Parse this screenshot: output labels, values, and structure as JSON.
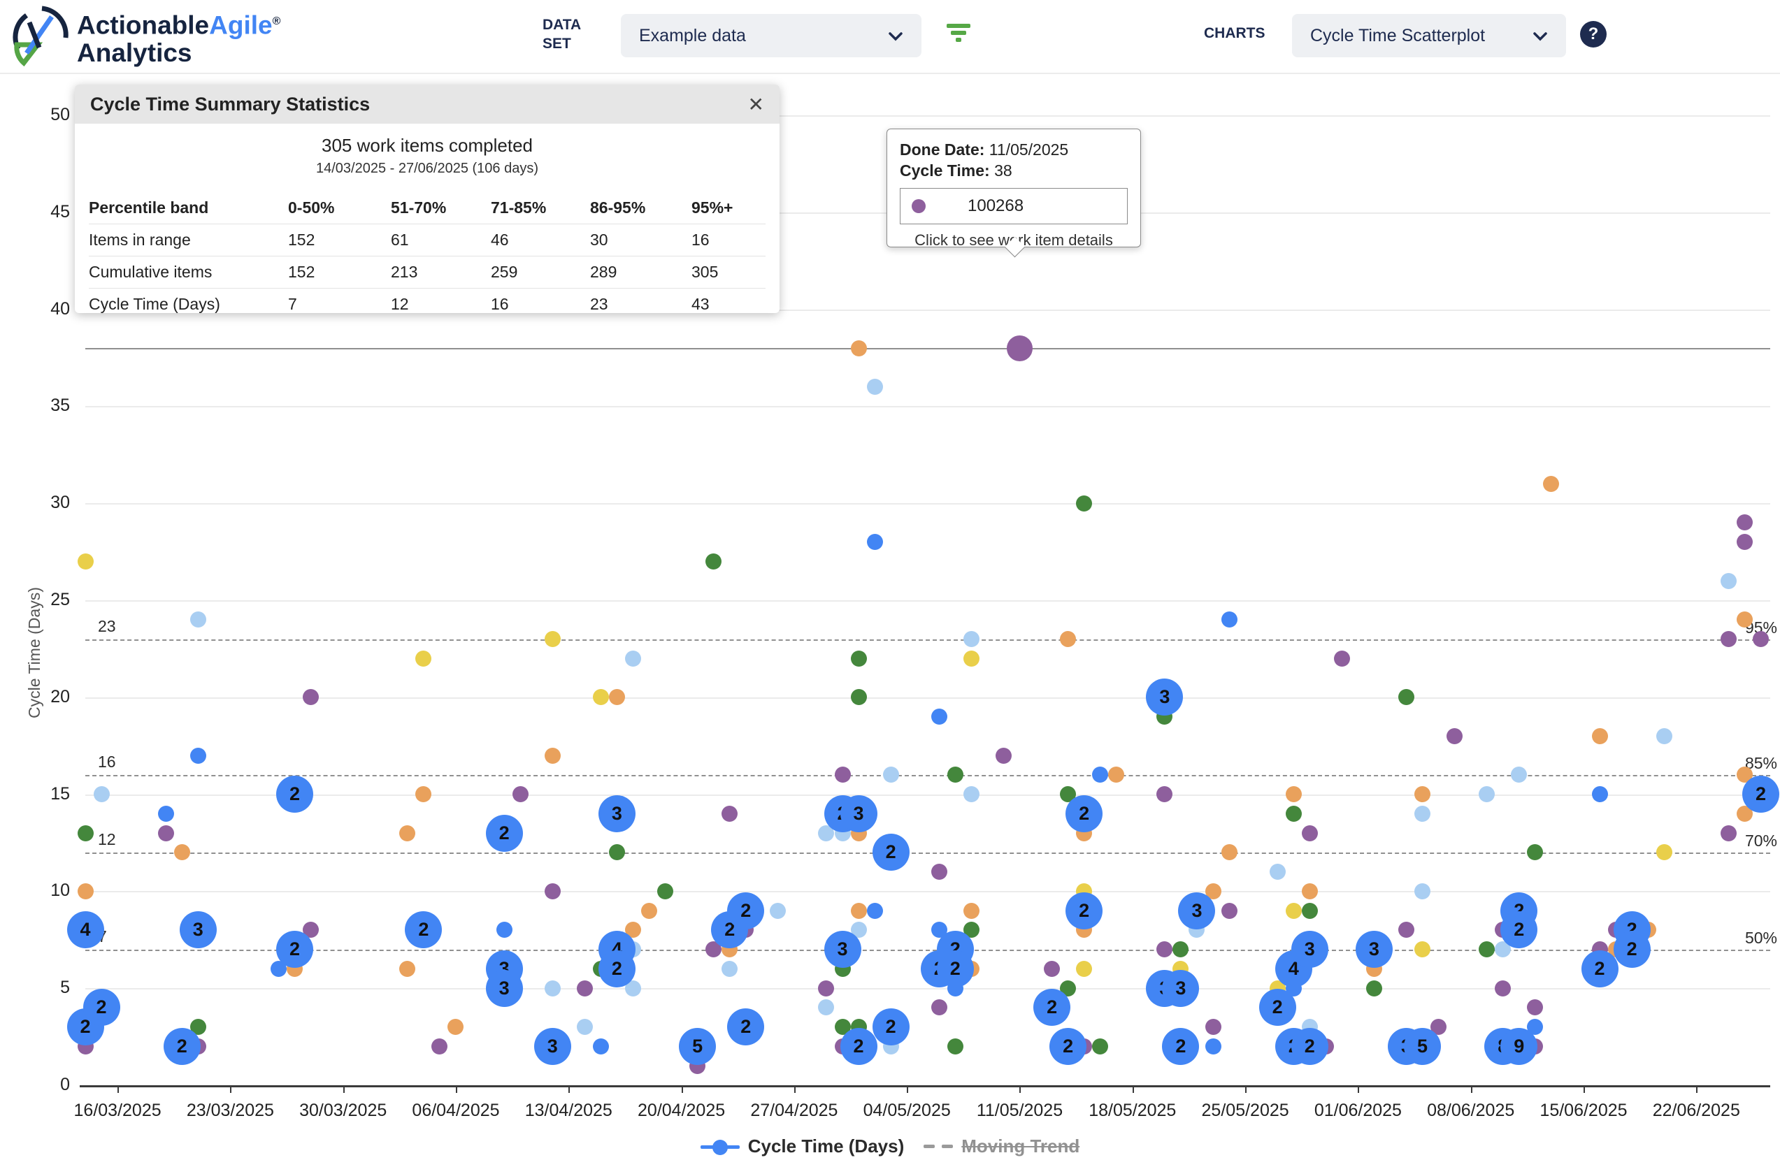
{
  "header": {
    "brand_part1": "Actionable",
    "brand_part2": "Agile",
    "brand_reg": "®",
    "brand_sub": "Analytics",
    "dataset_label_line1": "DATA",
    "dataset_label_line2": "SET",
    "dataset_value": "Example data",
    "charts_label": "CHARTS",
    "chart_type_value": "Cycle Time Scatterplot",
    "help_glyph": "?"
  },
  "stats_panel": {
    "title": "Cycle Time Summary Statistics",
    "close_glyph": "✕",
    "summary_line1": "305 work items completed",
    "summary_line2": "14/03/2025 - 27/06/2025 (106 days)",
    "table": {
      "header": [
        "Percentile band",
        "0-50%",
        "51-70%",
        "71-85%",
        "86-95%",
        "95%+"
      ],
      "rows": [
        {
          "label": "Items in range",
          "values": [
            "152",
            "61",
            "46",
            "30",
            "16"
          ]
        },
        {
          "label": "Cumulative items",
          "values": [
            "152",
            "213",
            "259",
            "289",
            "305"
          ]
        },
        {
          "label": "Cycle Time (Days)",
          "values": [
            "7",
            "12",
            "16",
            "23",
            "43"
          ]
        }
      ]
    }
  },
  "tooltip": {
    "done_date_label": "Done Date:",
    "done_date": "11/05/2025",
    "cycle_time_label": "Cycle Time:",
    "cycle_time": "38",
    "item_id": "100268",
    "hint": "Click to see work item details"
  },
  "legend": {
    "series1": "Cycle Time (Days)",
    "series2": "Moving Trend"
  },
  "chart_data": {
    "type": "scatter",
    "title": "Cycle Time Scatterplot",
    "y_axis": {
      "label": "Cycle Time (Days)",
      "min": 0,
      "max": 50,
      "tick_step": 5
    },
    "x_axis": {
      "start_date": "14/03/2025",
      "end_date": "27/06/2025",
      "tick_labels": [
        "16/03/2025",
        "23/03/2025",
        "30/03/2025",
        "06/04/2025",
        "13/04/2025",
        "20/04/2025",
        "27/04/2025",
        "04/05/2025",
        "11/05/2025",
        "18/05/2025",
        "25/05/2025",
        "01/06/2025",
        "08/06/2025",
        "15/06/2025",
        "22/06/2025"
      ]
    },
    "percentiles": [
      {
        "cycle_time": 23,
        "label": "95%"
      },
      {
        "cycle_time": 16,
        "label": "85%"
      },
      {
        "cycle_time": 12,
        "label": "70%"
      },
      {
        "cycle_time": 7,
        "label": "50%"
      }
    ],
    "crosshair_cycle_time": 38,
    "colors": {
      "blue": "#4285f4",
      "lightblue": "#a9cef2",
      "orange": "#e9a15c",
      "green": "#44873c",
      "purple": "#8e5f9d",
      "yellow": "#e9cf4a"
    },
    "points_format": "[days_since_14/03/2025, cycle_time_days, color, cluster_count, hovered]",
    "points": [
      [
        0,
        27,
        "yellow"
      ],
      [
        0,
        13,
        "green"
      ],
      [
        0,
        10,
        "orange"
      ],
      [
        0,
        8,
        "blue",
        4
      ],
      [
        0,
        3,
        "blue",
        2
      ],
      [
        0,
        2,
        "purple"
      ],
      [
        1,
        15,
        "lightblue"
      ],
      [
        1,
        4,
        "blue",
        2
      ],
      [
        5,
        14,
        "blue"
      ],
      [
        5,
        13,
        "purple"
      ],
      [
        6,
        12,
        "orange"
      ],
      [
        6,
        2,
        "blue",
        2
      ],
      [
        7,
        24,
        "lightblue"
      ],
      [
        7,
        17,
        "blue"
      ],
      [
        7,
        8,
        "blue",
        3
      ],
      [
        7,
        3,
        "green"
      ],
      [
        7,
        2,
        "purple"
      ],
      [
        12,
        6,
        "blue"
      ],
      [
        13,
        15,
        "blue",
        2
      ],
      [
        13,
        7,
        "blue",
        2
      ],
      [
        13,
        6,
        "orange"
      ],
      [
        14,
        20,
        "purple"
      ],
      [
        14,
        8,
        "purple"
      ],
      [
        20,
        13,
        "orange"
      ],
      [
        20,
        6,
        "orange"
      ],
      [
        21,
        22,
        "yellow"
      ],
      [
        21,
        15,
        "orange"
      ],
      [
        21,
        8,
        "blue",
        2
      ],
      [
        22,
        2,
        "purple"
      ],
      [
        23,
        3,
        "orange"
      ],
      [
        26,
        13,
        "blue",
        2
      ],
      [
        26,
        8,
        "blue"
      ],
      [
        26,
        6,
        "blue",
        3
      ],
      [
        26,
        5,
        "blue",
        3
      ],
      [
        27,
        15,
        "purple"
      ],
      [
        29,
        23,
        "yellow"
      ],
      [
        29,
        17,
        "orange"
      ],
      [
        29,
        10,
        "purple"
      ],
      [
        29,
        5,
        "lightblue"
      ],
      [
        29,
        2,
        "blue",
        3
      ],
      [
        31,
        5,
        "purple"
      ],
      [
        31,
        3,
        "lightblue"
      ],
      [
        32,
        20,
        "yellow"
      ],
      [
        32,
        6,
        "green"
      ],
      [
        32,
        2,
        "blue"
      ],
      [
        33,
        20,
        "orange"
      ],
      [
        33,
        14,
        "blue",
        3
      ],
      [
        33,
        12,
        "green"
      ],
      [
        33,
        7,
        "blue",
        4
      ],
      [
        33,
        6,
        "blue",
        2
      ],
      [
        34,
        22,
        "lightblue"
      ],
      [
        34,
        8,
        "orange"
      ],
      [
        34,
        7,
        "lightblue"
      ],
      [
        34,
        5,
        "lightblue"
      ],
      [
        35,
        9,
        "orange"
      ],
      [
        36,
        10,
        "green"
      ],
      [
        38,
        2,
        "blue",
        5
      ],
      [
        38,
        1,
        "purple"
      ],
      [
        39,
        27,
        "green"
      ],
      [
        39,
        7,
        "purple"
      ],
      [
        40,
        14,
        "purple"
      ],
      [
        40,
        8,
        "blue",
        2
      ],
      [
        40,
        7,
        "orange"
      ],
      [
        40,
        6,
        "lightblue"
      ],
      [
        41,
        9,
        "blue",
        2
      ],
      [
        41,
        8,
        "purple"
      ],
      [
        41,
        3,
        "blue",
        2
      ],
      [
        43,
        9,
        "lightblue"
      ],
      [
        46,
        13,
        "lightblue"
      ],
      [
        46,
        5,
        "purple"
      ],
      [
        46,
        4,
        "lightblue"
      ],
      [
        47,
        16,
        "purple"
      ],
      [
        47,
        14,
        "blue",
        2
      ],
      [
        47,
        13,
        "lightblue"
      ],
      [
        47,
        7,
        "blue",
        3
      ],
      [
        47,
        6,
        "green"
      ],
      [
        47,
        3,
        "green"
      ],
      [
        47,
        2,
        "purple"
      ],
      [
        48,
        38,
        "orange"
      ],
      [
        48,
        22,
        "green"
      ],
      [
        48,
        20,
        "green"
      ],
      [
        48,
        14,
        "blue",
        3
      ],
      [
        48,
        13,
        "orange"
      ],
      [
        48,
        9,
        "orange"
      ],
      [
        48,
        8,
        "lightblue"
      ],
      [
        48,
        3,
        "green"
      ],
      [
        48,
        2,
        "blue",
        2
      ],
      [
        49,
        36,
        "lightblue"
      ],
      [
        49,
        28,
        "blue"
      ],
      [
        49,
        9,
        "blue"
      ],
      [
        50,
        16,
        "lightblue"
      ],
      [
        50,
        12,
        "blue",
        2
      ],
      [
        50,
        3,
        "blue",
        2
      ],
      [
        50,
        2,
        "lightblue"
      ],
      [
        53,
        19,
        "blue"
      ],
      [
        53,
        11,
        "purple"
      ],
      [
        53,
        8,
        "blue"
      ],
      [
        53,
        6,
        "blue",
        2
      ],
      [
        53,
        4,
        "purple"
      ],
      [
        54,
        16,
        "green"
      ],
      [
        54,
        7,
        "blue",
        2
      ],
      [
        54,
        6,
        "blue",
        2
      ],
      [
        54,
        5,
        "blue"
      ],
      [
        54,
        2,
        "green"
      ],
      [
        55,
        23,
        "lightblue"
      ],
      [
        55,
        22,
        "yellow"
      ],
      [
        55,
        15,
        "lightblue"
      ],
      [
        55,
        9,
        "orange"
      ],
      [
        55,
        8,
        "green"
      ],
      [
        55,
        6,
        "orange"
      ],
      [
        57,
        17,
        "purple"
      ],
      [
        58,
        38,
        "purple",
        0,
        1
      ],
      [
        60,
        6,
        "purple"
      ],
      [
        60,
        4,
        "blue",
        2
      ],
      [
        61,
        23,
        "orange"
      ],
      [
        61,
        15,
        "green"
      ],
      [
        61,
        5,
        "green"
      ],
      [
        61,
        2,
        "blue",
        2
      ],
      [
        62,
        30,
        "green"
      ],
      [
        62,
        14,
        "blue",
        2
      ],
      [
        62,
        13,
        "orange"
      ],
      [
        62,
        10,
        "yellow"
      ],
      [
        62,
        9,
        "blue",
        2
      ],
      [
        62,
        8,
        "orange"
      ],
      [
        62,
        6,
        "yellow"
      ],
      [
        62,
        2,
        "purple"
      ],
      [
        63,
        16,
        "blue"
      ],
      [
        63,
        2,
        "green"
      ],
      [
        64,
        16,
        "orange"
      ],
      [
        67,
        20,
        "blue",
        3
      ],
      [
        67,
        19,
        "green"
      ],
      [
        67,
        15,
        "purple"
      ],
      [
        67,
        7,
        "purple"
      ],
      [
        67,
        5,
        "blue",
        3
      ],
      [
        68,
        7,
        "green"
      ],
      [
        68,
        6,
        "yellow"
      ],
      [
        68,
        5,
        "blue",
        3
      ],
      [
        68,
        2,
        "blue",
        2
      ],
      [
        69,
        9,
        "blue",
        3
      ],
      [
        69,
        8,
        "lightblue"
      ],
      [
        70,
        10,
        "orange"
      ],
      [
        70,
        3,
        "purple"
      ],
      [
        70,
        2,
        "blue"
      ],
      [
        71,
        24,
        "blue"
      ],
      [
        71,
        12,
        "orange"
      ],
      [
        71,
        9,
        "purple"
      ],
      [
        74,
        11,
        "lightblue"
      ],
      [
        74,
        5,
        "yellow"
      ],
      [
        74,
        4,
        "blue",
        2
      ],
      [
        75,
        15,
        "orange"
      ],
      [
        75,
        14,
        "green"
      ],
      [
        75,
        9,
        "yellow"
      ],
      [
        75,
        6,
        "blue",
        4
      ],
      [
        75,
        5,
        "blue"
      ],
      [
        75,
        2,
        "blue",
        2
      ],
      [
        76,
        13,
        "purple"
      ],
      [
        76,
        10,
        "orange"
      ],
      [
        76,
        9,
        "green"
      ],
      [
        76,
        7,
        "blue",
        3
      ],
      [
        76,
        3,
        "lightblue"
      ],
      [
        76,
        2,
        "blue",
        2
      ],
      [
        77,
        2,
        "purple"
      ],
      [
        78,
        22,
        "purple"
      ],
      [
        80,
        7,
        "blue",
        3
      ],
      [
        80,
        6,
        "orange"
      ],
      [
        80,
        5,
        "green"
      ],
      [
        82,
        20,
        "green"
      ],
      [
        82,
        8,
        "purple"
      ],
      [
        82,
        2,
        "blue",
        3
      ],
      [
        83,
        15,
        "orange"
      ],
      [
        83,
        14,
        "lightblue"
      ],
      [
        83,
        10,
        "lightblue"
      ],
      [
        83,
        7,
        "yellow"
      ],
      [
        83,
        2,
        "blue",
        5
      ],
      [
        84,
        3,
        "purple"
      ],
      [
        85,
        18,
        "purple"
      ],
      [
        87,
        15,
        "lightblue"
      ],
      [
        87,
        7,
        "green"
      ],
      [
        88,
        8,
        "purple"
      ],
      [
        88,
        7,
        "lightblue"
      ],
      [
        88,
        5,
        "purple"
      ],
      [
        88,
        2,
        "blue",
        8
      ],
      [
        89,
        16,
        "lightblue"
      ],
      [
        89,
        9,
        "blue",
        2
      ],
      [
        89,
        8,
        "blue",
        2
      ],
      [
        89,
        2,
        "blue",
        9
      ],
      [
        90,
        12,
        "green"
      ],
      [
        90,
        4,
        "purple"
      ],
      [
        90,
        3,
        "blue"
      ],
      [
        90,
        2,
        "purple"
      ],
      [
        91,
        31,
        "orange"
      ],
      [
        94,
        18,
        "orange"
      ],
      [
        94,
        15,
        "blue"
      ],
      [
        94,
        7,
        "purple"
      ],
      [
        94,
        6,
        "blue",
        2
      ],
      [
        95,
        8,
        "purple"
      ],
      [
        95,
        7,
        "orange"
      ],
      [
        96,
        8,
        "blue",
        2
      ],
      [
        96,
        7,
        "blue",
        2
      ],
      [
        97,
        8,
        "orange"
      ],
      [
        98,
        18,
        "lightblue"
      ],
      [
        98,
        12,
        "yellow"
      ],
      [
        102,
        26,
        "lightblue"
      ],
      [
        102,
        23,
        "purple"
      ],
      [
        102,
        13,
        "purple"
      ],
      [
        103,
        29,
        "purple"
      ],
      [
        103,
        28,
        "purple"
      ],
      [
        103,
        24,
        "orange"
      ],
      [
        103,
        16,
        "orange"
      ],
      [
        103,
        14,
        "orange"
      ],
      [
        104,
        23,
        "purple"
      ],
      [
        104,
        15,
        "blue",
        2
      ]
    ]
  }
}
